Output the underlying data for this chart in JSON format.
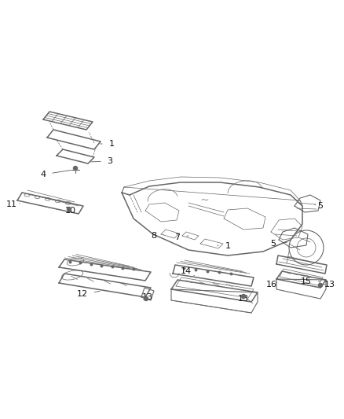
{
  "background_color": "#ffffff",
  "line_color": "#666666",
  "label_color": "#111111",
  "figsize": [
    4.38,
    5.33
  ],
  "dpi": 100
}
